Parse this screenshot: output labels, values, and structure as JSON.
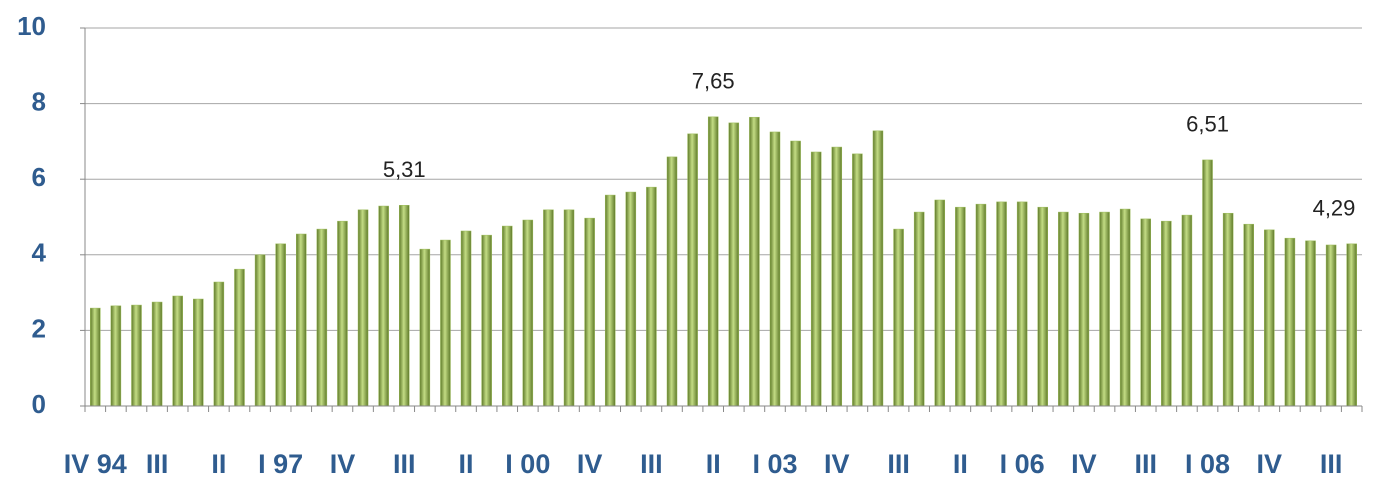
{
  "chart_data": {
    "type": "bar",
    "categories": [
      "IV 94",
      null,
      null,
      "III",
      null,
      null,
      "II",
      null,
      null,
      "I 97",
      null,
      null,
      "IV",
      null,
      null,
      "III",
      null,
      null,
      "II",
      null,
      null,
      "I 00",
      null,
      null,
      "IV",
      null,
      null,
      "III",
      null,
      null,
      "II",
      null,
      null,
      "I 03",
      null,
      null,
      "IV",
      null,
      null,
      "III",
      null,
      null,
      "II",
      null,
      null,
      "I 06",
      null,
      null,
      "IV",
      null,
      null,
      "III",
      null,
      null,
      "I 08",
      null,
      null,
      "IV",
      null,
      null,
      "III",
      null
    ],
    "values": [
      2.59,
      2.65,
      2.67,
      2.75,
      2.91,
      2.83,
      3.28,
      3.62,
      4.0,
      4.29,
      4.55,
      4.68,
      4.89,
      5.19,
      5.29,
      5.31,
      4.15,
      4.39,
      4.63,
      4.52,
      4.76,
      4.92,
      5.19,
      5.19,
      4.97,
      5.58,
      5.66,
      5.79,
      6.59,
      7.2,
      7.65,
      7.49,
      7.64,
      7.25,
      7.01,
      6.72,
      6.85,
      6.67,
      7.28,
      4.68,
      5.13,
      5.45,
      5.26,
      5.34,
      5.4,
      5.4,
      5.26,
      5.13,
      5.1,
      5.13,
      5.21,
      4.95,
      4.89,
      5.05,
      6.51,
      5.1,
      4.81,
      4.66,
      4.44,
      4.37,
      4.26,
      4.29
    ],
    "value_labels": [
      null,
      null,
      null,
      null,
      null,
      null,
      null,
      null,
      null,
      null,
      null,
      null,
      null,
      null,
      null,
      "5,31",
      null,
      null,
      null,
      null,
      null,
      null,
      null,
      null,
      null,
      null,
      null,
      null,
      null,
      null,
      "7,65",
      null,
      null,
      null,
      null,
      null,
      null,
      null,
      null,
      null,
      null,
      null,
      null,
      null,
      null,
      null,
      null,
      null,
      null,
      null,
      null,
      null,
      null,
      null,
      "6,51",
      null,
      null,
      null,
      null,
      null,
      null,
      "4,29"
    ],
    "color": "#9bbb59",
    "ylim": [
      0,
      10
    ],
    "yticks": [
      0,
      2,
      4,
      6,
      8,
      10
    ],
    "grid": true
  }
}
